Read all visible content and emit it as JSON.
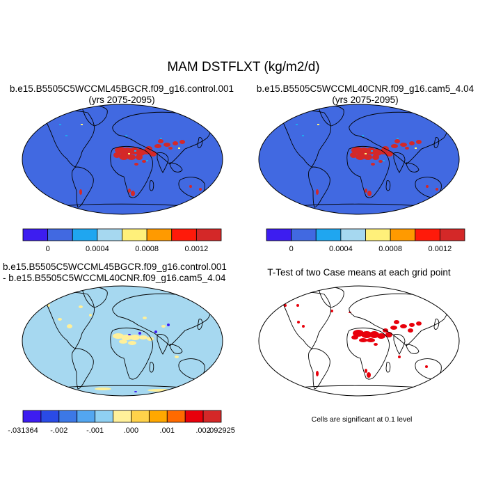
{
  "figure": {
    "title": "MAM DSTFLXT (kg/m2/d)",
    "footnote": "Cells are significant at 0.1 level"
  },
  "panels": [
    {
      "id": "control",
      "title_lines": [
        "b.e15.B5505C5WCCML45BGCR.f09_g16.control.001",
        "(yrs 2075-2095)"
      ],
      "background_color": "#4169e1"
    },
    {
      "id": "cam5",
      "title_lines": [
        "b.e15.B5505C5WCCML40CNR.f09_g16.cam5_4.04",
        "(yrs 2075-2095)"
      ],
      "background_color": "#4169e1"
    },
    {
      "id": "difference",
      "title_lines": [
        "b.e15.B5505C5WCCML45BGCR.f09_g16.control.001",
        "- b.e15.B5505C5WCCML40CNR.f09_g16.cam5_4.04"
      ],
      "background_color": "#a6d8f0"
    },
    {
      "id": "ttest",
      "title_lines": [
        "T-Test of two Case means at each grid point"
      ],
      "background_color": "#ffffff",
      "significant_color": "#e8000b"
    }
  ],
  "colorbars": {
    "mean": {
      "colors": [
        "#3d1df0",
        "#4169e1",
        "#1fa6f0",
        "#a6d8f0",
        "#fff07a",
        "#ff9a00",
        "#ff1a0a",
        "#d42828"
      ],
      "labels": [
        {
          "boundary": 1,
          "text": "0"
        },
        {
          "boundary": 3,
          "text": "0.0004"
        },
        {
          "boundary": 5,
          "text": "0.0008"
        },
        {
          "boundary": 7,
          "text": "0.0012"
        }
      ]
    },
    "difference": {
      "colors": [
        "#3d1df0",
        "#2a4be6",
        "#3c78e6",
        "#53a6f0",
        "#8fd0f2",
        "#fff09a",
        "#ffd24a",
        "#ffa800",
        "#ff6a00",
        "#e8000b",
        "#d42828"
      ],
      "labels": [
        {
          "boundary": 0,
          "text": "-.031364"
        },
        {
          "boundary": 2,
          "text": "-.002"
        },
        {
          "boundary": 4,
          "text": "-.001"
        },
        {
          "boundary": 6,
          "text": ".000"
        },
        {
          "boundary": 8,
          "text": ".001"
        },
        {
          "boundary": 10,
          "text": ".002"
        },
        {
          "boundary": 11,
          "text": ".092925"
        }
      ]
    }
  },
  "map_style": {
    "land_outline": "#000000",
    "high_flux_color": "#d42828",
    "diff_positive_color": "#fff09a",
    "diff_negative_color": "#3d1df0"
  }
}
